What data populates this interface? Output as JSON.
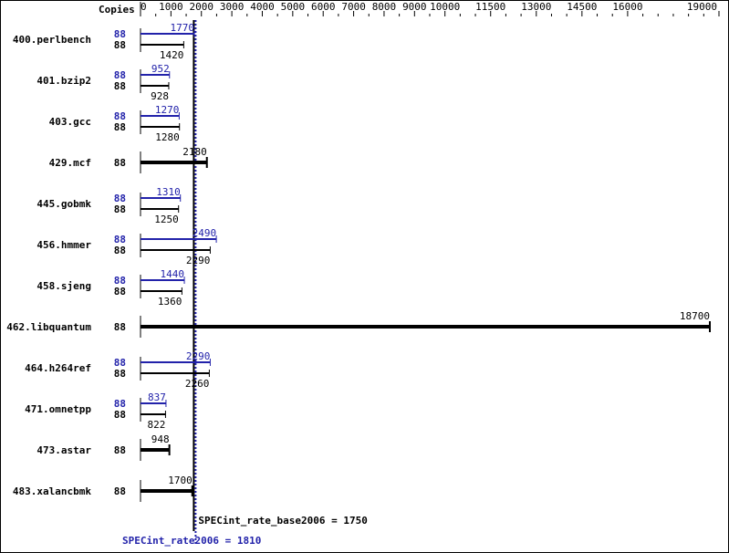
{
  "chart_data": {
    "type": "bar",
    "orientation": "horizontal",
    "axis_label": "Copies",
    "xlim": [
      0,
      19000
    ],
    "tick_labels": [
      "0",
      "1000",
      "2000",
      "3000",
      "4000",
      "5000",
      "6000",
      "7000",
      "8000",
      "9000",
      "10000",
      "11500",
      "13000",
      "14500",
      "16000",
      "19000"
    ],
    "colors": {
      "peak": "#2222aa",
      "base": "#000000"
    },
    "benchmarks": [
      {
        "name": "400.perlbench",
        "copies_peak": "88",
        "copies_base": "88",
        "peak": 1770,
        "base": 1420
      },
      {
        "name": "401.bzip2",
        "copies_peak": "88",
        "copies_base": "88",
        "peak": 952,
        "base": 928
      },
      {
        "name": "403.gcc",
        "copies_peak": "88",
        "copies_base": "88",
        "peak": 1270,
        "base": 1280
      },
      {
        "name": "429.mcf",
        "copies_base": "88",
        "base": 2180
      },
      {
        "name": "445.gobmk",
        "copies_peak": "88",
        "copies_base": "88",
        "peak": 1310,
        "base": 1250
      },
      {
        "name": "456.hmmer",
        "copies_peak": "88",
        "copies_base": "88",
        "peak": 2490,
        "base": 2290
      },
      {
        "name": "458.sjeng",
        "copies_peak": "88",
        "copies_base": "88",
        "peak": 1440,
        "base": 1360
      },
      {
        "name": "462.libquantum",
        "copies_base": "88",
        "base": 18700
      },
      {
        "name": "464.h264ref",
        "copies_peak": "88",
        "copies_base": "88",
        "peak": 2290,
        "base": 2260
      },
      {
        "name": "471.omnetpp",
        "copies_peak": "88",
        "copies_base": "88",
        "peak": 837,
        "base": 822
      },
      {
        "name": "473.astar",
        "copies_base": "88",
        "base": 948
      },
      {
        "name": "483.xalancbmk",
        "copies_base": "88",
        "base": 1700
      }
    ],
    "base_summary": {
      "label": "SPECint_rate_base2006 = 1750",
      "value": 1750
    },
    "peak_summary": {
      "label": "SPECint_rate2006 = 1810",
      "value": 1810
    }
  }
}
